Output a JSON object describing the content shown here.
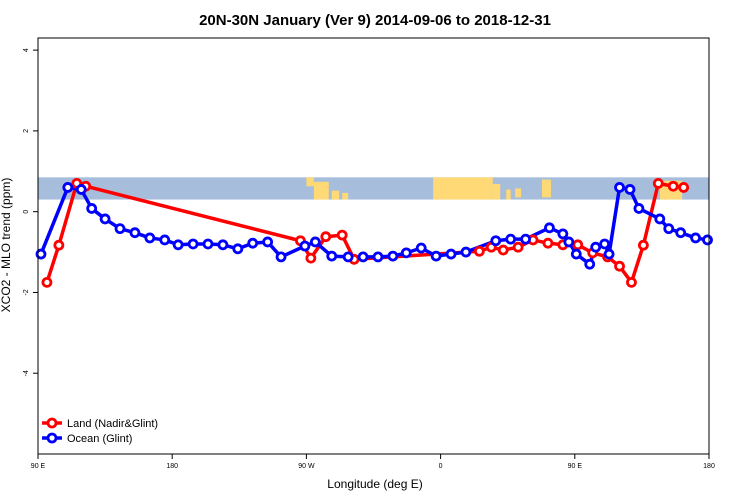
{
  "chart_data": {
    "type": "line",
    "title": "20N-30N January (Ver 9)   2014-09-06 to 2018-12-31",
    "xlabel": "Longitude (deg E)",
    "ylabel": "XCO2 - MLO trend (ppm)",
    "xlim": [
      90,
      540
    ],
    "ylim": [
      -6,
      4.3
    ],
    "xticks": [
      {
        "value": 90,
        "label": "90 E"
      },
      {
        "value": 180,
        "label": "180"
      },
      {
        "value": 270,
        "label": "90 W"
      },
      {
        "value": 360,
        "label": "0"
      },
      {
        "value": 450,
        "label": "90 E"
      },
      {
        "value": 540,
        "label": "180"
      }
    ],
    "yticks": [
      {
        "value": -4,
        "label": "-4"
      },
      {
        "value": -2,
        "label": "-2"
      },
      {
        "value": 0,
        "label": "0"
      },
      {
        "value": 2,
        "label": "2"
      },
      {
        "value": 4,
        "label": "4"
      }
    ],
    "map_band": {
      "ymin": 0.3,
      "ymax": 0.85,
      "ocean_color": "#a6bddb",
      "land_color": "#fed976"
    },
    "legend": {
      "position": "bottom-left"
    },
    "series": [
      {
        "name": "Land (Nadir&Glint)",
        "color": "#ff0000",
        "x": [
          96,
          104,
          116,
          122,
          266,
          273,
          283,
          294,
          302,
          386,
          394,
          402,
          412,
          422,
          432,
          442,
          452,
          462,
          472,
          480,
          488,
          496,
          506,
          516,
          523
        ],
        "y": [
          -1.75,
          -0.83,
          0.7,
          0.63,
          -0.72,
          -1.15,
          -0.62,
          -0.58,
          -1.18,
          -0.98,
          -0.88,
          -0.95,
          -0.88,
          -0.7,
          -0.78,
          -0.82,
          -0.82,
          -1.02,
          -1.12,
          -1.35,
          -1.75,
          -0.83,
          0.7,
          0.63,
          0.6
        ]
      },
      {
        "name": "Ocean (Glint)",
        "color": "#0000ff",
        "x": [
          92,
          110,
          119,
          126,
          135,
          145,
          155,
          165,
          175,
          184,
          194,
          204,
          214,
          224,
          234,
          244,
          253,
          269,
          276,
          287,
          298,
          308,
          318,
          328,
          337,
          347,
          357,
          367,
          377,
          397,
          407,
          417,
          433,
          442,
          446,
          451,
          460,
          464,
          470,
          473,
          480,
          487,
          493,
          507,
          513,
          521,
          531,
          539
        ],
        "y": [
          -1.05,
          0.6,
          0.55,
          0.08,
          -0.18,
          -0.42,
          -0.52,
          -0.65,
          -0.7,
          -0.82,
          -0.8,
          -0.8,
          -0.82,
          -0.92,
          -0.78,
          -0.75,
          -1.12,
          -0.85,
          -0.75,
          -1.1,
          -1.12,
          -1.12,
          -1.12,
          -1.1,
          -1.02,
          -0.9,
          -1.1,
          -1.05,
          -1.0,
          -0.72,
          -0.68,
          -0.68,
          -0.4,
          -0.55,
          -0.75,
          -1.05,
          -1.3,
          -0.88,
          -0.8,
          -1.05,
          0.6,
          0.55,
          0.08,
          -0.18,
          -0.42,
          -0.52,
          -0.65,
          -0.7
        ]
      }
    ]
  }
}
